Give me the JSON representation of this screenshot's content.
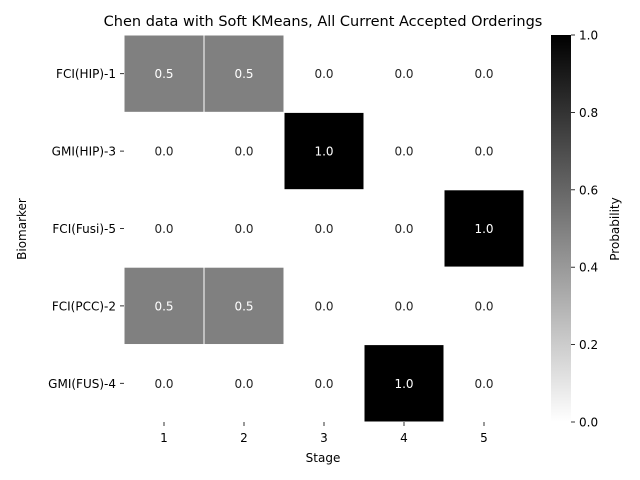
{
  "chart_data": {
    "type": "heatmap",
    "title": "Chen data with Soft KMeans, All Current Accepted Orderings",
    "xlabel": "Stage",
    "ylabel": "Biomarker",
    "x_categories": [
      "1",
      "2",
      "3",
      "4",
      "5"
    ],
    "y_categories": [
      "FCI(HIP)-1",
      "GMI(HIP)-3",
      "FCI(Fusi)-5",
      "FCI(PCC)-2",
      "GMI(FUS)-4"
    ],
    "values": [
      [
        0.5,
        0.5,
        0.0,
        0.0,
        0.0
      ],
      [
        0.0,
        0.0,
        1.0,
        0.0,
        0.0
      ],
      [
        0.0,
        0.0,
        0.0,
        0.0,
        1.0
      ],
      [
        0.5,
        0.5,
        0.0,
        0.0,
        0.0
      ],
      [
        0.0,
        0.0,
        0.0,
        1.0,
        0.0
      ]
    ],
    "cell_labels": [
      [
        "0.5",
        "0.5",
        "0.0",
        "0.0",
        "0.0"
      ],
      [
        "0.0",
        "0.0",
        "1.0",
        "0.0",
        "0.0"
      ],
      [
        "0.0",
        "0.0",
        "0.0",
        "0.0",
        "1.0"
      ],
      [
        "0.5",
        "0.5",
        "0.0",
        "0.0",
        "0.0"
      ],
      [
        "0.0",
        "0.0",
        "0.0",
        "1.0",
        "0.0"
      ]
    ],
    "colorbar": {
      "label": "Probability",
      "range": [
        0.0,
        1.0
      ],
      "ticks": [
        "0.0",
        "0.2",
        "0.4",
        "0.6",
        "0.8",
        "1.0"
      ]
    },
    "colormap": "Greys"
  }
}
